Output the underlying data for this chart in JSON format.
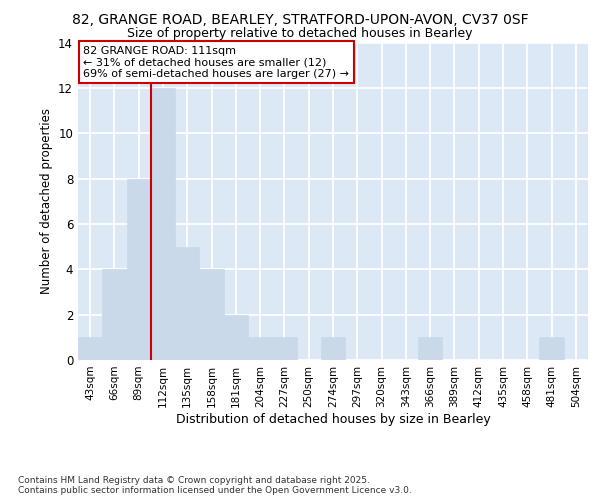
{
  "title1": "82, GRANGE ROAD, BEARLEY, STRATFORD-UPON-AVON, CV37 0SF",
  "title2": "Size of property relative to detached houses in Bearley",
  "xlabel": "Distribution of detached houses by size in Bearley",
  "ylabel": "Number of detached properties",
  "categories": [
    "43sqm",
    "66sqm",
    "89sqm",
    "112sqm",
    "135sqm",
    "158sqm",
    "181sqm",
    "204sqm",
    "227sqm",
    "250sqm",
    "274sqm",
    "297sqm",
    "320sqm",
    "343sqm",
    "366sqm",
    "389sqm",
    "412sqm",
    "435sqm",
    "458sqm",
    "481sqm",
    "504sqm"
  ],
  "values": [
    1,
    4,
    8,
    12,
    5,
    4,
    2,
    1,
    1,
    0,
    1,
    0,
    0,
    0,
    1,
    0,
    0,
    0,
    0,
    1,
    0
  ],
  "bar_color": "#c9d9ea",
  "bar_edge_color": "#c9d9ea",
  "highlight_line_index": 3,
  "highlight_line_color": "#cc0000",
  "annotation_text": "82 GRANGE ROAD: 111sqm\n← 31% of detached houses are smaller (12)\n69% of semi-detached houses are larger (27) →",
  "annotation_box_facecolor": "#ffffff",
  "annotation_box_edgecolor": "#cc0000",
  "ylim": [
    0,
    14
  ],
  "yticks": [
    0,
    2,
    4,
    6,
    8,
    10,
    12,
    14
  ],
  "plot_bg_color": "#dce8f5",
  "fig_bg_color": "#ffffff",
  "grid_color": "#ffffff",
  "footer_line1": "Contains HM Land Registry data © Crown copyright and database right 2025.",
  "footer_line2": "Contains public sector information licensed under the Open Government Licence v3.0."
}
